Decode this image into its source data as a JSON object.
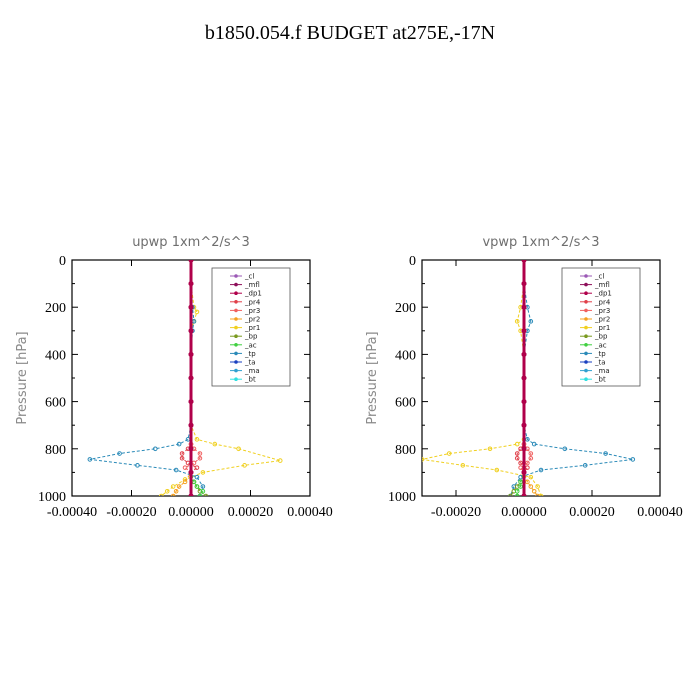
{
  "title": "b1850.054.f  BUDGET at275E,-17N",
  "colors": {
    "_cl": "#9b59b6",
    "_mfl": "#8e0f5a",
    "_dp1": "#b0004a",
    "_pr4": "#e0404a",
    "_pr3": "#f06060",
    "_pr2": "#f5a020",
    "_pr1": "#f0d020",
    "_bp": "#7a9a20",
    "_ac": "#40d040",
    "_tp": "#2a8ab8",
    "_ta": "#1a40c0",
    "_ma": "#30a0d0",
    "_bt": "#30e0e0"
  },
  "chart_data": [
    {
      "type": "line",
      "title": "upwp   1xm^2/s^3",
      "ylabel": "Pressure [hPa]",
      "xlim": [
        -0.0004,
        0.0004
      ],
      "ylim": [
        1000,
        0
      ],
      "xticks": [
        "-0.00040",
        "-0.00020",
        "0.00000",
        "0.00020",
        "0.00040"
      ],
      "xtick_values": [
        -0.0004,
        -0.0002,
        0,
        0.0002,
        0.0004
      ],
      "yticks": [
        "0",
        "200",
        "400",
        "600",
        "800",
        "1000"
      ],
      "ytick_values": [
        0,
        200,
        400,
        600,
        800,
        1000
      ],
      "legend": [
        "_cl",
        "_mfl",
        "_dp1",
        "_pr4",
        "_pr3",
        "_pr2",
        "_pr1",
        "_bp",
        "_ac",
        "_tp",
        "_ta",
        "_ma",
        "_bt"
      ],
      "legend_position": "top-right",
      "series": [
        {
          "name": "_pr1",
          "y": [
            0,
            100,
            200,
            220,
            260,
            300,
            400,
            600,
            700,
            760,
            780,
            800,
            850,
            870,
            900,
            930,
            960,
            980,
            1000
          ],
          "x": [
            0,
            0,
            1e-05,
            2e-05,
            1e-05,
            0,
            0,
            0,
            0,
            2e-05,
            8e-05,
            0.00016,
            0.0003,
            0.00018,
            4e-05,
            -2e-05,
            -6e-05,
            -8e-05,
            -0.0001
          ]
        },
        {
          "name": "_tp",
          "y": [
            0,
            100,
            200,
            260,
            300,
            400,
            600,
            700,
            760,
            780,
            800,
            820,
            845,
            870,
            890,
            920,
            960,
            1000
          ],
          "x": [
            0,
            0,
            5e-06,
            1e-05,
            5e-06,
            0,
            0,
            0,
            -1e-05,
            -4e-05,
            -0.00012,
            -0.00024,
            -0.00034,
            -0.00018,
            -5e-05,
            2e-05,
            4e-05,
            3e-05
          ]
        },
        {
          "name": "_pr4",
          "y": [
            0,
            200,
            400,
            600,
            780,
            800,
            820,
            840,
            860,
            880,
            900,
            1000
          ],
          "x": [
            0,
            0,
            0,
            0,
            0,
            -1e-05,
            -3e-05,
            -3e-05,
            -1e-05,
            2e-05,
            0,
            0
          ]
        },
        {
          "name": "_pr3",
          "y": [
            0,
            200,
            400,
            600,
            780,
            800,
            820,
            840,
            860,
            880,
            900,
            1000
          ],
          "x": [
            0,
            0,
            0,
            0,
            0,
            1e-05,
            3e-05,
            3e-05,
            1e-05,
            -2e-05,
            0,
            0
          ]
        },
        {
          "name": "_bp",
          "y": [
            0,
            400,
            800,
            900,
            940,
            960,
            980,
            1000
          ],
          "x": [
            0,
            0,
            0,
            0,
            1e-05,
            2e-05,
            3e-05,
            5e-05
          ]
        },
        {
          "name": "_ac",
          "y": [
            0,
            400,
            800,
            900,
            940,
            960,
            980,
            1000
          ],
          "x": [
            0,
            0,
            0,
            0,
            1e-05,
            2e-05,
            4e-05,
            3e-05
          ]
        },
        {
          "name": "_pr2",
          "y": [
            0,
            200,
            400,
            800,
            900,
            940,
            960,
            980,
            1000
          ],
          "x": [
            0,
            0,
            0,
            0,
            0,
            -2e-05,
            -4e-05,
            -5e-05,
            -6e-05
          ]
        },
        {
          "name": "_mfl",
          "y": [
            0,
            100,
            200,
            300,
            400,
            500,
            600,
            700,
            800,
            900,
            1000
          ],
          "x": [
            0,
            0,
            0,
            0,
            0,
            0,
            0,
            0,
            0,
            0,
            0
          ]
        },
        {
          "name": "_dp1",
          "y": [
            0,
            100,
            200,
            300,
            400,
            500,
            600,
            700,
            800,
            900,
            1000
          ],
          "x": [
            0,
            0,
            0,
            0,
            0,
            0,
            0,
            0,
            0,
            0,
            0
          ]
        }
      ]
    },
    {
      "type": "line",
      "title": "vpwp   1xm^2/s^3",
      "ylabel": "Pressure [hPa]",
      "xlim": [
        -0.0003,
        0.0004
      ],
      "ylim": [
        1000,
        0
      ],
      "xticks": [
        "-0.00020",
        "0.00000",
        "0.00020",
        "0.00040"
      ],
      "xtick_values": [
        -0.0002,
        0,
        0.0002,
        0.0004
      ],
      "yticks": [
        "0",
        "200",
        "400",
        "600",
        "800",
        "1000"
      ],
      "ytick_values": [
        0,
        200,
        400,
        600,
        800,
        1000
      ],
      "legend": [
        "_cl",
        "_mfl",
        "_dp1",
        "_pr4",
        "_pr3",
        "_pr2",
        "_pr1",
        "_bp",
        "_ac",
        "_tp",
        "_ta",
        "_ma",
        "_bt"
      ],
      "legend_position": "top-right",
      "series": [
        {
          "name": "_pr1",
          "y": [
            0,
            100,
            200,
            260,
            300,
            400,
            600,
            700,
            760,
            780,
            800,
            820,
            845,
            870,
            890,
            920,
            960,
            1000
          ],
          "x": [
            0,
            0,
            -1e-05,
            -2e-05,
            -1e-05,
            0,
            0,
            0,
            0,
            -2e-05,
            -0.0001,
            -0.00022,
            -0.0003,
            -0.00018,
            -8e-05,
            2e-05,
            4e-05,
            5e-05
          ]
        },
        {
          "name": "_tp",
          "y": [
            0,
            100,
            200,
            260,
            300,
            400,
            600,
            700,
            760,
            780,
            800,
            820,
            845,
            870,
            890,
            920,
            960,
            1000
          ],
          "x": [
            0,
            0,
            1e-05,
            2e-05,
            1e-05,
            0,
            0,
            0,
            1e-05,
            3e-05,
            0.00012,
            0.00024,
            0.00032,
            0.00018,
            5e-05,
            -1e-05,
            -3e-05,
            -4e-05
          ]
        },
        {
          "name": "_pr4",
          "y": [
            0,
            200,
            400,
            600,
            780,
            800,
            820,
            840,
            860,
            880,
            900,
            1000
          ],
          "x": [
            0,
            0,
            0,
            0,
            0,
            -1e-05,
            -2e-05,
            -2e-05,
            -1e-05,
            1e-05,
            0,
            0
          ]
        },
        {
          "name": "_pr3",
          "y": [
            0,
            200,
            400,
            600,
            780,
            800,
            820,
            840,
            860,
            880,
            900,
            1000
          ],
          "x": [
            0,
            0,
            0,
            0,
            0,
            1e-05,
            2e-05,
            2e-05,
            1e-05,
            -1e-05,
            0,
            0
          ]
        },
        {
          "name": "_bp",
          "y": [
            0,
            400,
            800,
            900,
            940,
            960,
            980,
            1000
          ],
          "x": [
            0,
            0,
            0,
            0,
            -1e-05,
            -2e-05,
            -3e-05,
            -4e-05
          ]
        },
        {
          "name": "_ac",
          "y": [
            0,
            400,
            800,
            900,
            940,
            960,
            980,
            1000
          ],
          "x": [
            0,
            0,
            0,
            0,
            -1e-05,
            -1e-05,
            -2e-05,
            -2e-05
          ]
        },
        {
          "name": "_pr2",
          "y": [
            0,
            200,
            400,
            800,
            900,
            940,
            960,
            980,
            1000
          ],
          "x": [
            0,
            0,
            0,
            0,
            0,
            1e-05,
            2e-05,
            3e-05,
            4e-05
          ]
        },
        {
          "name": "_mfl",
          "y": [
            0,
            100,
            200,
            300,
            400,
            500,
            600,
            700,
            800,
            900,
            1000
          ],
          "x": [
            0,
            0,
            0,
            0,
            0,
            0,
            0,
            0,
            0,
            0,
            0
          ]
        },
        {
          "name": "_dp1",
          "y": [
            0,
            100,
            200,
            300,
            400,
            500,
            600,
            700,
            800,
            900,
            1000
          ],
          "x": [
            0,
            0,
            0,
            0,
            0,
            0,
            0,
            0,
            0,
            0,
            0
          ]
        }
      ]
    }
  ]
}
